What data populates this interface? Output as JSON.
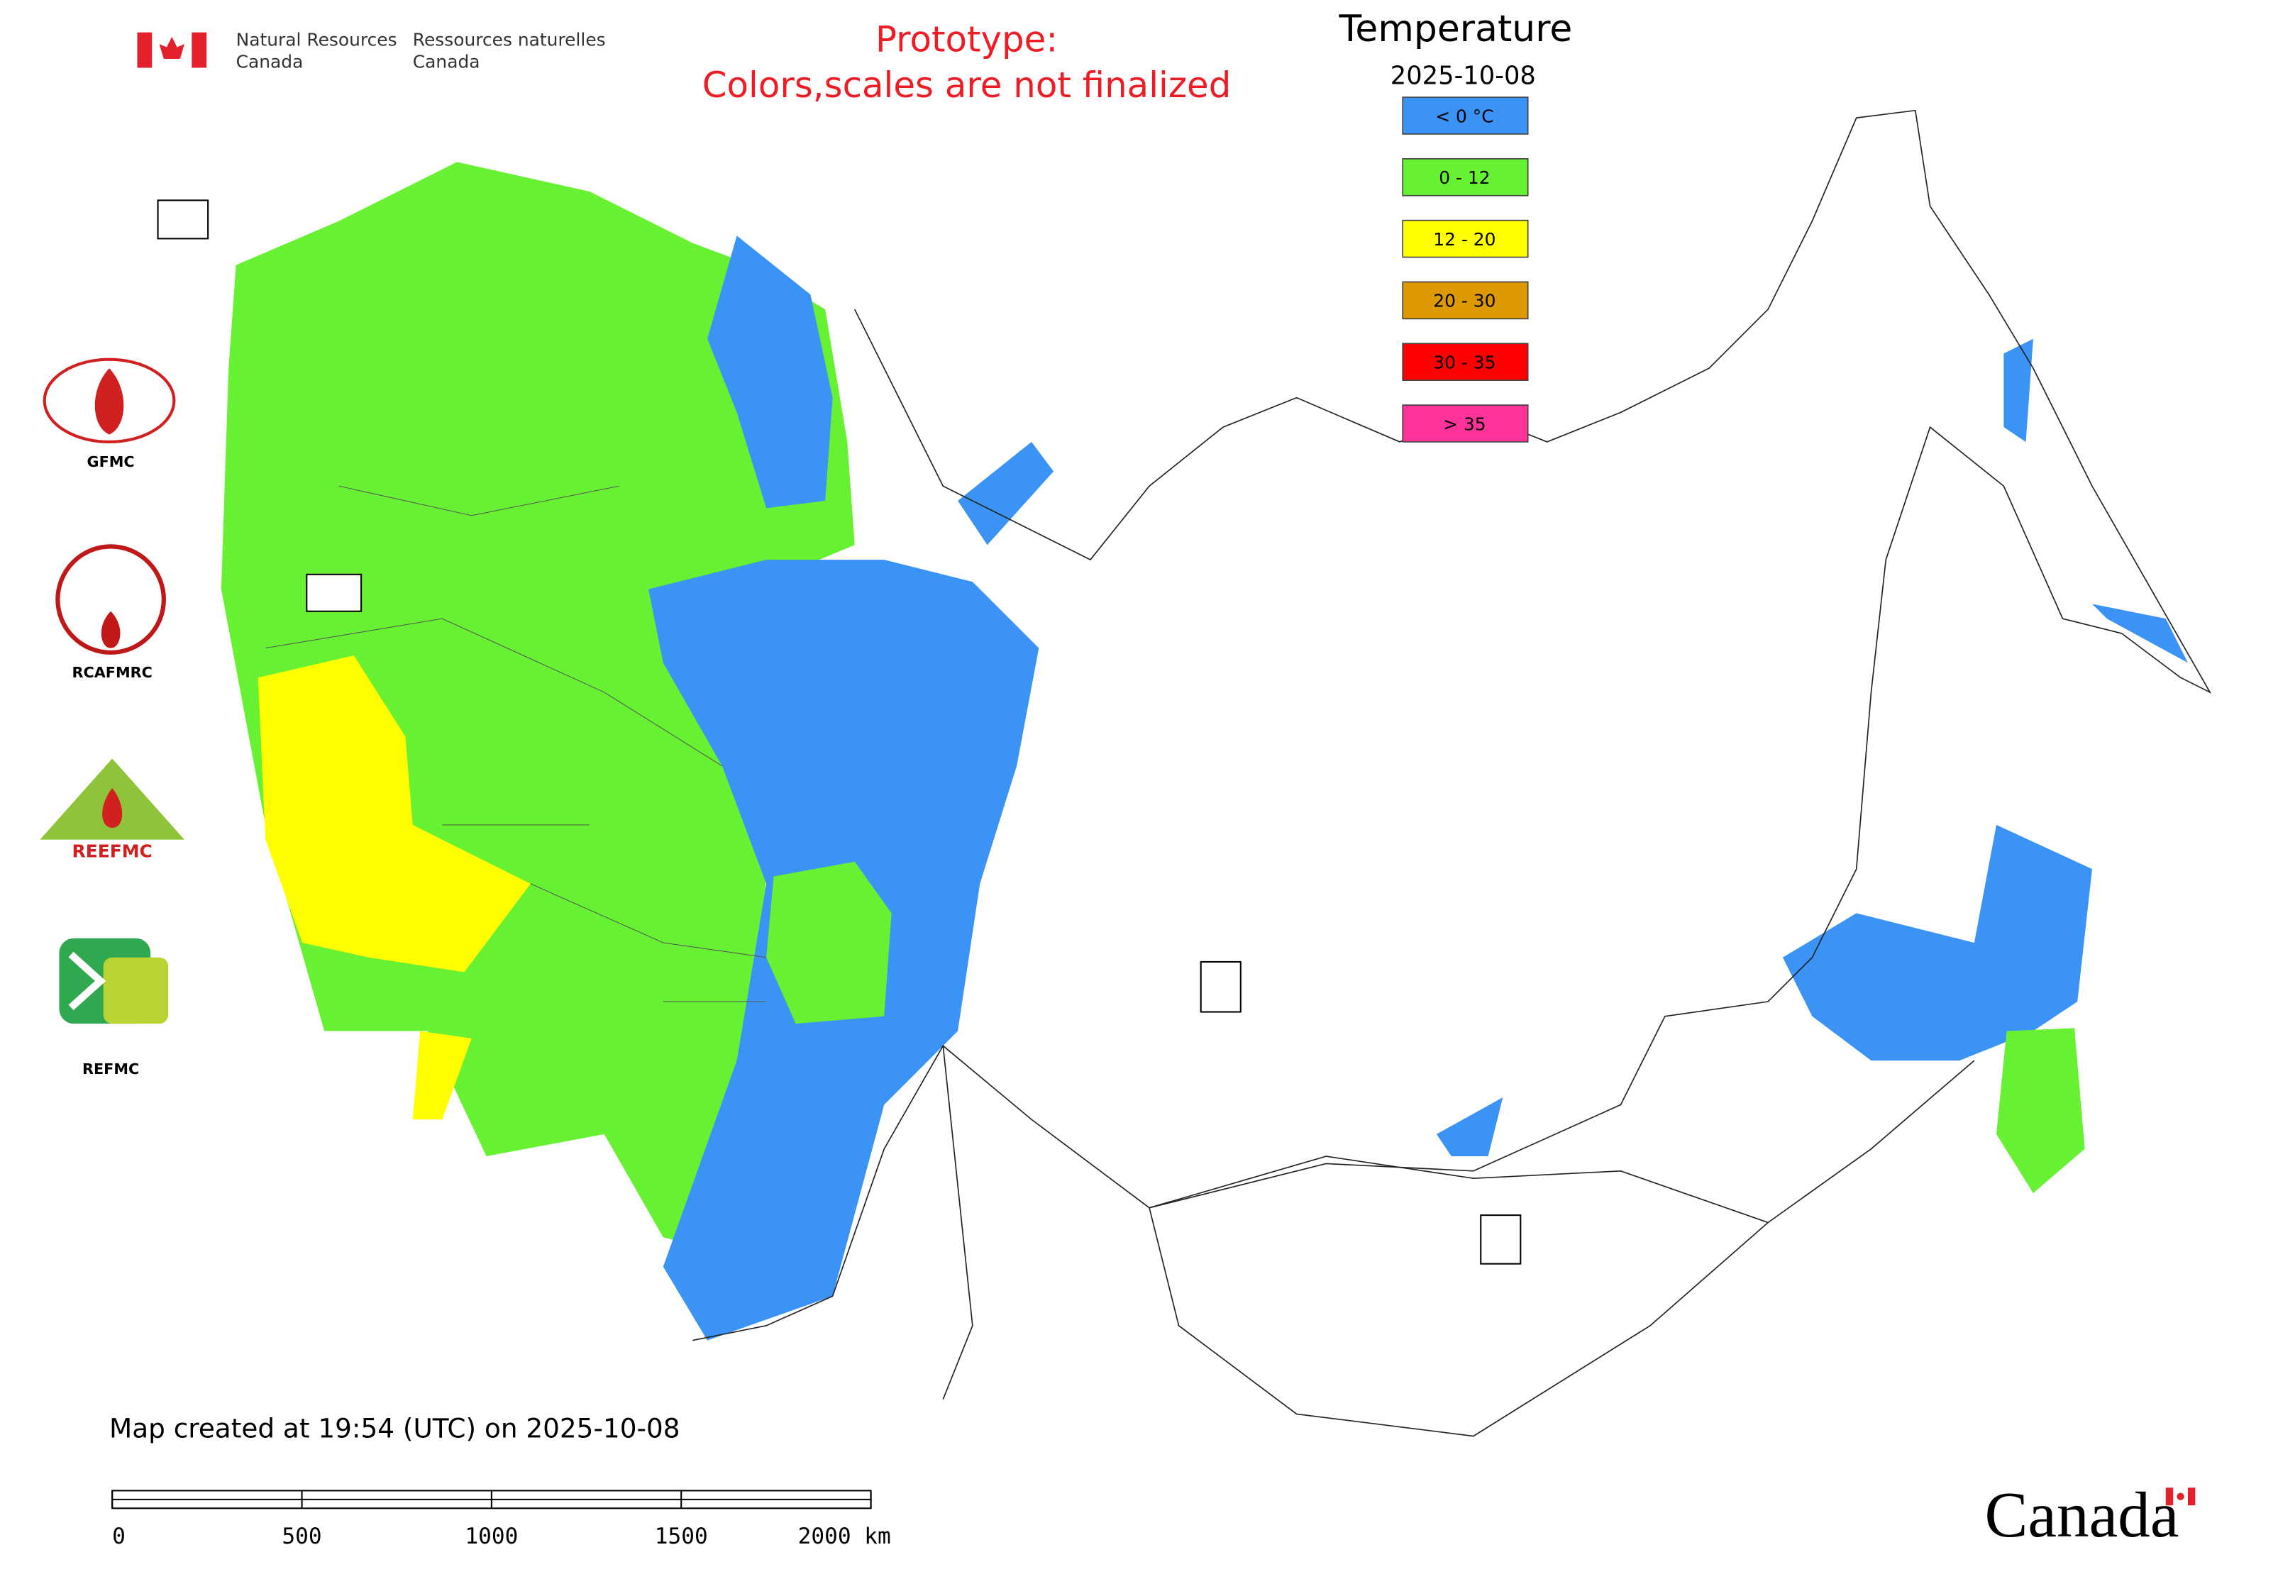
{
  "header": {
    "nrcan_en": [
      "Natural Resources",
      "Canada"
    ],
    "nrcan_fr": [
      "Ressources naturelles",
      "Canada"
    ],
    "prototype": [
      "Prototype:",
      "Colors,scales are not finalized"
    ]
  },
  "legend": {
    "title": "Temperature",
    "date": "2025-10-08",
    "items": [
      {
        "label": "< 0 °C",
        "color": "#3b93f5"
      },
      {
        "label": "0 - 12",
        "color": "#66f233"
      },
      {
        "label": "12 - 20",
        "color": "#ffff00"
      },
      {
        "label": "20 - 30",
        "color": "#dd9900"
      },
      {
        "label": "30 - 35",
        "color": "#ff0000"
      },
      {
        "label": "> 35",
        "color": "#ff3399"
      }
    ]
  },
  "logos": [
    "GFMC",
    "RCAFMRC",
    "REEFMC",
    "REFMC"
  ],
  "footer": {
    "created": "Map created at 19:54 (UTC) on 2025-10-08",
    "scale_labels": [
      "0",
      "500",
      "1000",
      "1500",
      "2000 km"
    ],
    "wordmark": "Canada"
  }
}
